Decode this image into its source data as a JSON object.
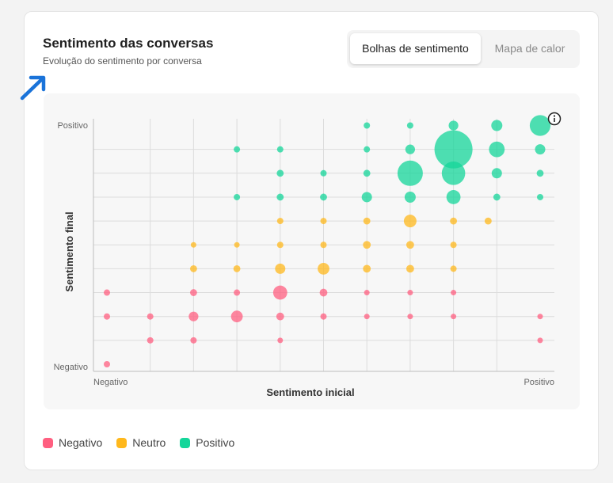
{
  "header": {
    "title": "Sentimento das conversas",
    "subtitle": "Evolução do sentimento por conversa"
  },
  "tabs": [
    {
      "label": "Bolhas de sentimento",
      "active": true
    },
    {
      "label": "Mapa de calor",
      "active": false
    }
  ],
  "colors": {
    "Negativo": "#ff5f80",
    "Neutro": "#ffb81c",
    "Positivo": "#14d69a",
    "annotation_arrow": "#1a73d9"
  },
  "icons": {
    "info": "info-icon",
    "annotation": "arrow-up-right-icon"
  },
  "chart_data": {
    "type": "scatter",
    "subtype": "bubble",
    "xlabel": "Sentimento inicial",
    "ylabel": "Sentimento final",
    "x_ticks": {
      "min_label": "Negativo",
      "max_label": "Positivo"
    },
    "y_ticks": {
      "min_label": "Negativo",
      "max_label": "Positivo"
    },
    "xlim": [
      0,
      10
    ],
    "ylim": [
      0,
      10
    ],
    "grid": true,
    "legend_position": "bottom-left",
    "legend": [
      "Negativo",
      "Neutro",
      "Positivo"
    ],
    "series": [
      {
        "name": "Negativo",
        "points": [
          [
            0,
            0,
            1.3
          ],
          [
            0,
            2,
            1.3
          ],
          [
            0,
            3,
            1.3
          ],
          [
            1,
            1,
            1.3
          ],
          [
            1,
            2,
            1.3
          ],
          [
            2,
            1,
            1.3
          ],
          [
            2,
            2,
            3
          ],
          [
            2,
            3,
            1.6
          ],
          [
            3,
            2,
            4.5
          ],
          [
            3,
            3,
            1.3
          ],
          [
            4,
            1,
            1
          ],
          [
            4,
            2,
            2
          ],
          [
            4,
            3,
            6.5
          ],
          [
            5,
            2,
            1.3
          ],
          [
            5,
            3,
            2
          ],
          [
            6,
            2,
            1
          ],
          [
            6,
            3,
            1
          ],
          [
            7,
            2,
            1
          ],
          [
            7,
            3,
            1
          ],
          [
            8,
            2,
            1
          ],
          [
            8,
            3,
            1
          ],
          [
            10,
            1,
            1
          ],
          [
            10,
            2,
            1
          ]
        ]
      },
      {
        "name": "Neutro",
        "points": [
          [
            2,
            4,
            1.6
          ],
          [
            2,
            5,
            1
          ],
          [
            3,
            4,
            1.6
          ],
          [
            3,
            5,
            1
          ],
          [
            4,
            4,
            3.4
          ],
          [
            4,
            5,
            1.3
          ],
          [
            4,
            6,
            1.3
          ],
          [
            5,
            4,
            4.5
          ],
          [
            5,
            5,
            1.3
          ],
          [
            5,
            6,
            1.3
          ],
          [
            6,
            4,
            2
          ],
          [
            6,
            5,
            2
          ],
          [
            6,
            6,
            1.6
          ],
          [
            7,
            4,
            2
          ],
          [
            7,
            5,
            2
          ],
          [
            7,
            6,
            5.2
          ],
          [
            8,
            4,
            1.3
          ],
          [
            8,
            5,
            1.3
          ],
          [
            8,
            6,
            1.6
          ],
          [
            8.8,
            6,
            1.6
          ]
        ]
      },
      {
        "name": "Positivo",
        "points": [
          [
            3,
            7,
            1.3
          ],
          [
            3,
            9,
            1.3
          ],
          [
            4,
            7,
            1.6
          ],
          [
            4,
            8,
            1.6
          ],
          [
            4,
            9,
            1.3
          ],
          [
            5,
            7,
            1.6
          ],
          [
            5,
            8,
            1.3
          ],
          [
            6,
            7,
            3.4
          ],
          [
            6,
            8,
            1.6
          ],
          [
            6,
            9,
            1.3
          ],
          [
            6,
            10,
            1.3
          ],
          [
            7,
            7,
            4
          ],
          [
            7,
            8,
            21
          ],
          [
            7,
            9,
            3
          ],
          [
            7,
            10,
            1.3
          ],
          [
            8,
            7,
            6.5
          ],
          [
            8,
            8,
            18
          ],
          [
            8,
            9,
            47
          ],
          [
            8,
            10,
            3
          ],
          [
            9,
            7,
            1.6
          ],
          [
            9,
            8,
            3.4
          ],
          [
            9,
            9,
            8
          ],
          [
            9,
            10,
            4
          ],
          [
            10,
            7,
            1.3
          ],
          [
            10,
            8,
            1.6
          ],
          [
            10,
            9,
            3.4
          ],
          [
            10,
            10,
            14
          ]
        ]
      }
    ]
  }
}
